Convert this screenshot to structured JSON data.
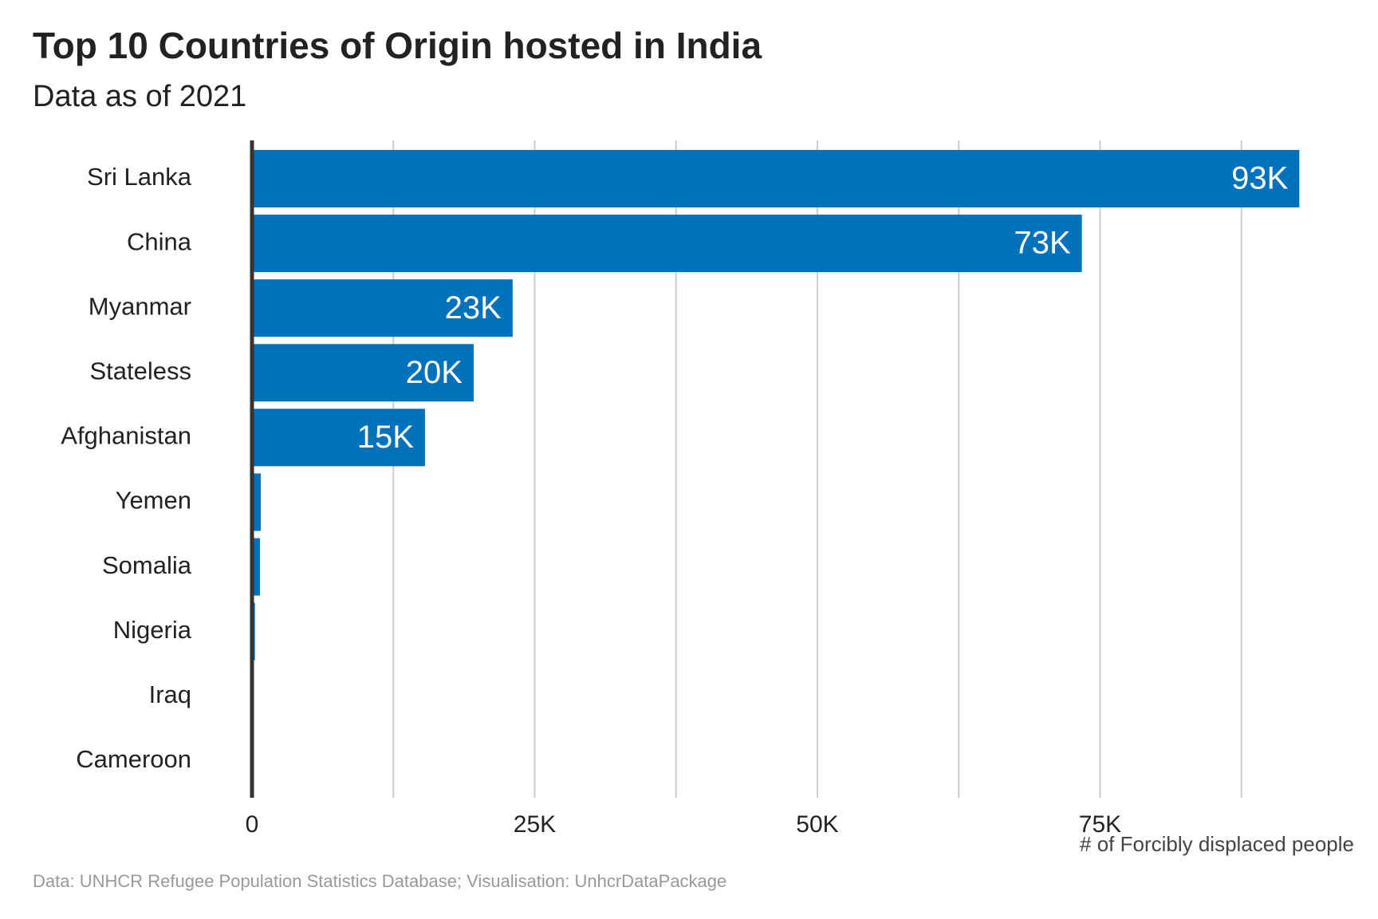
{
  "chart_data": {
    "type": "bar",
    "orientation": "horizontal",
    "title": "Top 10 Countries of Origin hosted in India",
    "subtitle": "Data as of 2021",
    "xlabel": "# of Forcibly displaced people",
    "caption": "Data: UNHCR Refugee Population Statistics Database; Visualisation: UnhcrDataPackage",
    "categories": [
      "Sri Lanka",
      "China",
      "Myanmar",
      "Stateless",
      "Afghanistan",
      "Yemen",
      "Somalia",
      "Nigeria",
      "Iraq",
      "Cameroon"
    ],
    "values": [
      92620,
      73390,
      23050,
      19600,
      15300,
      780,
      700,
      260,
      40,
      20
    ],
    "data_labels": [
      "93K",
      "73K",
      "23K",
      "20K",
      "15K",
      "",
      "",
      "",
      "",
      ""
    ],
    "xlim": [
      0,
      95000
    ],
    "xticks": [
      0,
      25000,
      50000,
      75000
    ],
    "xtick_labels": [
      "0",
      "25K",
      "50K",
      "75K"
    ],
    "grid": "vertical",
    "legend": "none",
    "colors": {
      "bar": "#0072BC",
      "axis": "#333333",
      "grid": "#cccccc",
      "label_inside": "#ffffff",
      "caption": "#999999"
    }
  }
}
